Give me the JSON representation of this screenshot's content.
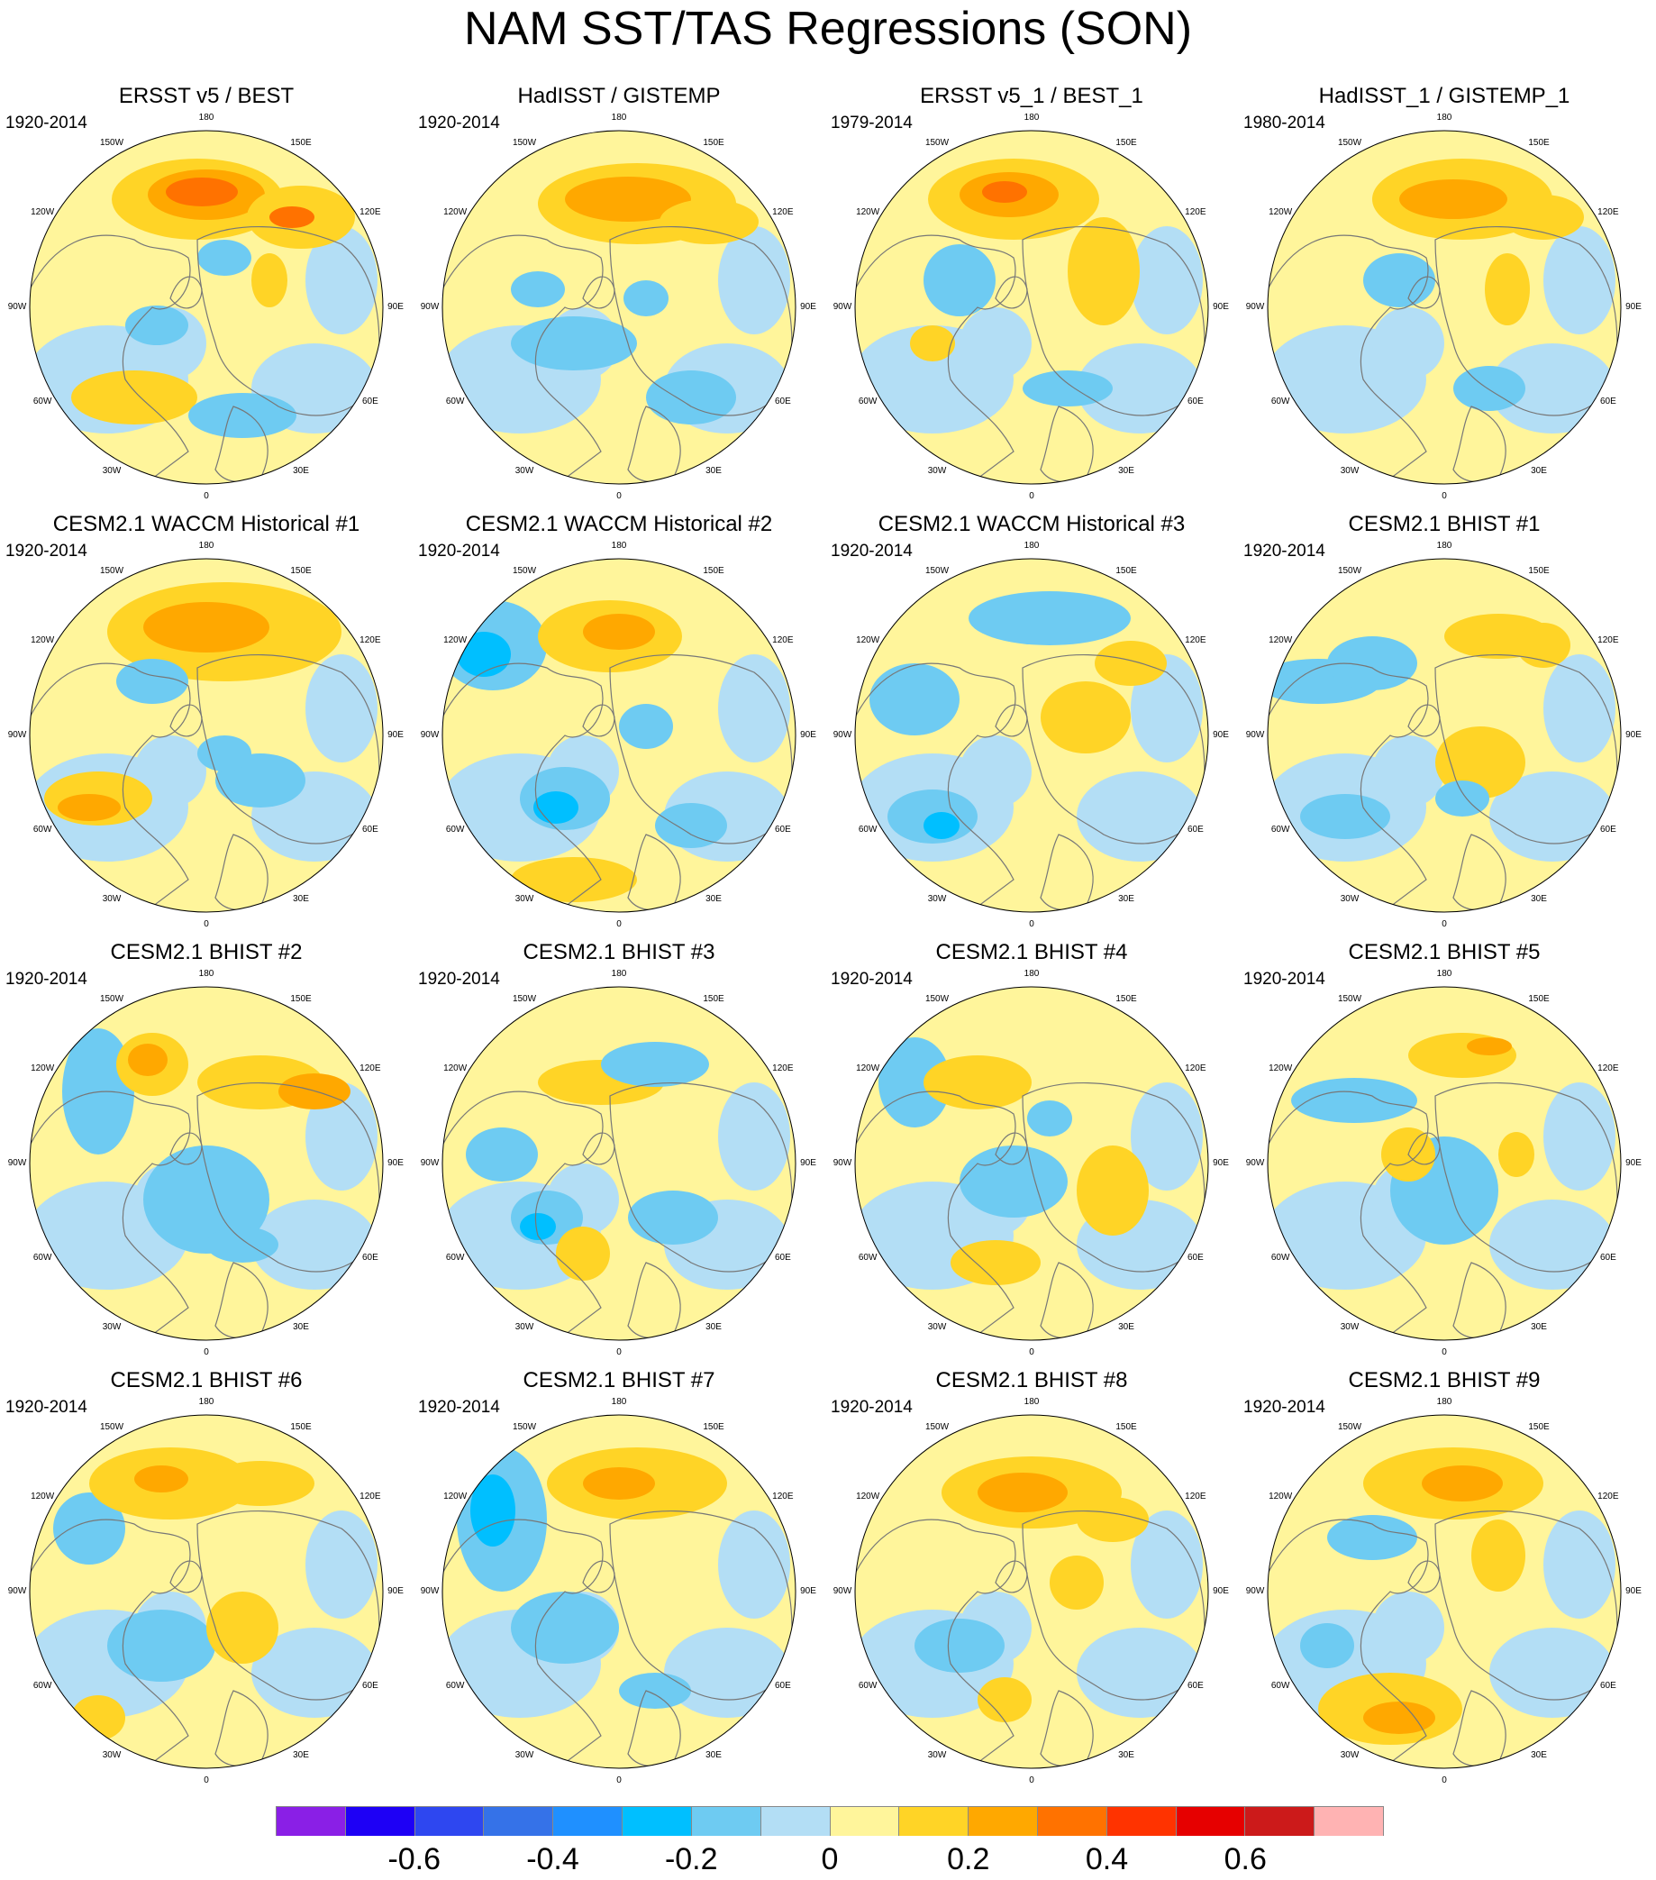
{
  "title": "NAM SST/TAS Regressions (SON)",
  "longitude_labels": [
    "180",
    "150E",
    "120E",
    "90E",
    "60E",
    "30E",
    "0",
    "30W",
    "60W",
    "90W",
    "120W",
    "150W"
  ],
  "panels": [
    {
      "title": "ERSST v5 / BEST",
      "period": "1920-2014"
    },
    {
      "title": "HadISST / GISTEMP",
      "period": "1920-2014"
    },
    {
      "title": "ERSST v5_1 / BEST_1",
      "period": "1979-2014"
    },
    {
      "title": "HadISST_1 / GISTEMP_1",
      "period": "1980-2014"
    },
    {
      "title": "CESM2.1 WACCM Historical #1",
      "period": "1920-2014"
    },
    {
      "title": "CESM2.1 WACCM Historical #2",
      "period": "1920-2014"
    },
    {
      "title": "CESM2.1 WACCM Historical #3",
      "period": "1920-2014"
    },
    {
      "title": "CESM2.1 BHIST #1",
      "period": "1920-2014"
    },
    {
      "title": "CESM2.1 BHIST #2",
      "period": "1920-2014"
    },
    {
      "title": "CESM2.1 BHIST #3",
      "period": "1920-2014"
    },
    {
      "title": "CESM2.1 BHIST #4",
      "period": "1920-2014"
    },
    {
      "title": "CESM2.1 BHIST #5",
      "period": "1920-2014"
    },
    {
      "title": "CESM2.1 BHIST #6",
      "period": "1920-2014"
    },
    {
      "title": "CESM2.1 BHIST #7",
      "period": "1920-2014"
    },
    {
      "title": "CESM2.1 BHIST #8",
      "period": "1920-2014"
    },
    {
      "title": "CESM2.1 BHIST #9",
      "period": "1920-2014"
    }
  ],
  "colorbar": {
    "colors": [
      "#8a1fe6",
      "#1e00f5",
      "#2e47f0",
      "#3572e8",
      "#1f90ff",
      "#00bfff",
      "#6ecbf2",
      "#b3def5",
      "#fff59b",
      "#ffd426",
      "#ffa800",
      "#ff7200",
      "#ff3300",
      "#e60000",
      "#cc1a1a",
      "#ffb3b3"
    ],
    "labels": [
      "-0.6",
      "-0.4",
      "-0.2",
      "0",
      "0.2",
      "0.4",
      "0.6"
    ]
  }
}
